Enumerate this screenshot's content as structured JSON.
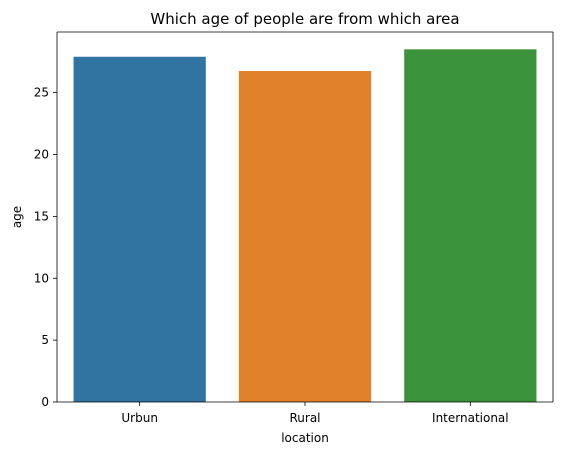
{
  "chart_data": {
    "type": "bar",
    "title": "Which age of people are from which area",
    "xlabel": "location",
    "ylabel": "age",
    "categories": [
      "Urbun",
      "Rural",
      "International"
    ],
    "values": [
      27.9,
      26.75,
      28.5
    ],
    "colors": [
      "#3274a1",
      "#e1812c",
      "#3a923a"
    ],
    "ylim": [
      0,
      29.9
    ],
    "yticks": [
      0,
      5,
      10,
      15,
      20,
      25
    ],
    "grid": false
  }
}
